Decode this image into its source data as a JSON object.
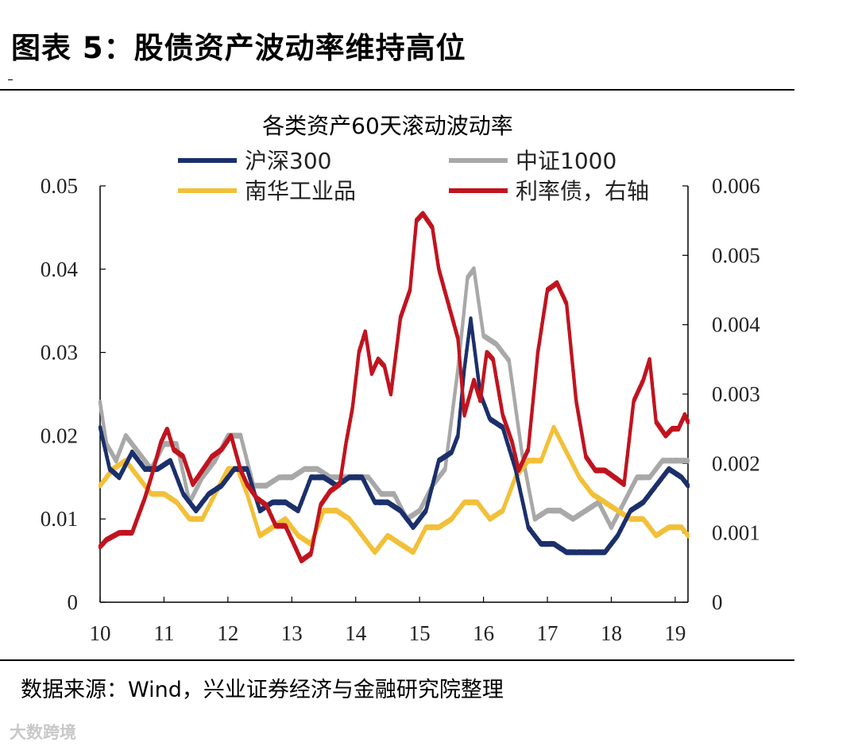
{
  "figure": {
    "title": "图表 5：股债资产波动率维持高位",
    "source": "数据来源：Wind，兴业证券经济与金融研究院整理",
    "watermark": "大数跨境"
  },
  "chart_data": {
    "type": "line",
    "title": "各类资产60天滚动波动率",
    "x_tick_labels": [
      "10",
      "11",
      "12",
      "13",
      "14",
      "15",
      "16",
      "17",
      "18",
      "19"
    ],
    "xlim": [
      10,
      19.2
    ],
    "left_axis": {
      "ylim": [
        0,
        0.05
      ],
      "tick_labels": [
        "0",
        "0.01",
        "0.02",
        "0.03",
        "0.04",
        "0.05"
      ]
    },
    "right_axis": {
      "ylim": [
        0,
        0.006
      ],
      "tick_labels": [
        "0",
        "0.001",
        "0.002",
        "0.003",
        "0.004",
        "0.005",
        "0.006"
      ]
    },
    "legend": [
      {
        "name": "沪深300",
        "color": "#1b2f6b"
      },
      {
        "name": "中证1000",
        "color": "#a8a8a8"
      },
      {
        "name": "南华工业品",
        "color": "#f2c038"
      },
      {
        "name": "利率债，右轴",
        "color": "#c0141f"
      }
    ],
    "series": [
      {
        "name": "中证1000",
        "axis": "left",
        "color": "#a8a8a8",
        "x": [
          10.0,
          10.1,
          10.25,
          10.4,
          10.6,
          10.8,
          11.0,
          11.2,
          11.4,
          11.6,
          11.8,
          12.0,
          12.2,
          12.4,
          12.6,
          12.8,
          13.0,
          13.2,
          13.4,
          13.6,
          13.8,
          14.0,
          14.2,
          14.4,
          14.6,
          14.8,
          15.0,
          15.2,
          15.4,
          15.6,
          15.75,
          15.85,
          16.0,
          16.2,
          16.4,
          16.6,
          16.8,
          17.0,
          17.2,
          17.4,
          17.6,
          17.8,
          18.0,
          18.2,
          18.4,
          18.6,
          18.8,
          19.0,
          19.2
        ],
        "values": [
          0.024,
          0.019,
          0.017,
          0.02,
          0.018,
          0.016,
          0.019,
          0.019,
          0.012,
          0.015,
          0.017,
          0.02,
          0.02,
          0.014,
          0.014,
          0.015,
          0.015,
          0.016,
          0.016,
          0.015,
          0.015,
          0.015,
          0.015,
          0.013,
          0.013,
          0.01,
          0.011,
          0.014,
          0.016,
          0.028,
          0.039,
          0.04,
          0.032,
          0.031,
          0.029,
          0.018,
          0.01,
          0.011,
          0.011,
          0.01,
          0.011,
          0.012,
          0.009,
          0.012,
          0.015,
          0.015,
          0.017,
          0.017,
          0.017
        ]
      },
      {
        "name": "南华工业品",
        "axis": "left",
        "color": "#f2c038",
        "x": [
          10.0,
          10.2,
          10.4,
          10.6,
          10.8,
          11.0,
          11.2,
          11.4,
          11.6,
          11.8,
          12.0,
          12.15,
          12.3,
          12.5,
          12.7,
          12.9,
          13.1,
          13.3,
          13.5,
          13.7,
          13.9,
          14.1,
          14.3,
          14.5,
          14.7,
          14.9,
          15.1,
          15.3,
          15.5,
          15.7,
          15.9,
          16.1,
          16.3,
          16.5,
          16.7,
          16.9,
          17.1,
          17.3,
          17.5,
          17.7,
          17.9,
          18.1,
          18.3,
          18.5,
          18.7,
          18.9,
          19.1,
          19.2
        ],
        "values": [
          0.014,
          0.016,
          0.017,
          0.015,
          0.013,
          0.013,
          0.012,
          0.01,
          0.01,
          0.013,
          0.016,
          0.016,
          0.013,
          0.008,
          0.009,
          0.01,
          0.008,
          0.007,
          0.011,
          0.011,
          0.01,
          0.008,
          0.006,
          0.008,
          0.007,
          0.006,
          0.009,
          0.009,
          0.01,
          0.012,
          0.012,
          0.01,
          0.011,
          0.015,
          0.017,
          0.017,
          0.021,
          0.018,
          0.015,
          0.013,
          0.012,
          0.011,
          0.01,
          0.01,
          0.008,
          0.009,
          0.009,
          0.008
        ]
      },
      {
        "name": "沪深300",
        "axis": "left",
        "color": "#1b2f6b",
        "x": [
          10.0,
          10.15,
          10.3,
          10.5,
          10.7,
          10.9,
          11.1,
          11.3,
          11.5,
          11.7,
          11.9,
          12.1,
          12.3,
          12.5,
          12.7,
          12.9,
          13.1,
          13.3,
          13.5,
          13.7,
          13.9,
          14.1,
          14.3,
          14.5,
          14.7,
          14.9,
          15.1,
          15.3,
          15.5,
          15.6,
          15.7,
          15.8,
          15.95,
          16.1,
          16.3,
          16.5,
          16.7,
          16.9,
          17.1,
          17.3,
          17.5,
          17.7,
          17.9,
          18.1,
          18.3,
          18.5,
          18.7,
          18.9,
          19.1,
          19.2
        ],
        "values": [
          0.021,
          0.016,
          0.015,
          0.018,
          0.016,
          0.016,
          0.017,
          0.013,
          0.011,
          0.013,
          0.014,
          0.016,
          0.016,
          0.011,
          0.012,
          0.012,
          0.011,
          0.015,
          0.015,
          0.014,
          0.015,
          0.015,
          0.012,
          0.012,
          0.011,
          0.009,
          0.011,
          0.017,
          0.018,
          0.02,
          0.028,
          0.034,
          0.025,
          0.022,
          0.021,
          0.016,
          0.009,
          0.007,
          0.007,
          0.006,
          0.006,
          0.006,
          0.006,
          0.008,
          0.011,
          0.012,
          0.014,
          0.016,
          0.015,
          0.014
        ]
      },
      {
        "name": "利率债，右轴",
        "axis": "right",
        "color": "#c0141f",
        "x": [
          10.0,
          10.1,
          10.3,
          10.5,
          10.7,
          10.8,
          10.95,
          11.05,
          11.15,
          11.3,
          11.45,
          11.6,
          11.75,
          11.9,
          12.05,
          12.2,
          12.3,
          12.45,
          12.6,
          12.75,
          12.9,
          13.05,
          13.15,
          13.3,
          13.45,
          13.6,
          13.75,
          13.85,
          13.95,
          14.05,
          14.15,
          14.25,
          14.35,
          14.45,
          14.55,
          14.7,
          14.85,
          14.95,
          15.05,
          15.2,
          15.3,
          15.45,
          15.6,
          15.7,
          15.85,
          15.95,
          16.05,
          16.15,
          16.3,
          16.45,
          16.55,
          16.7,
          16.85,
          17.0,
          17.15,
          17.3,
          17.45,
          17.6,
          17.75,
          17.9,
          18.05,
          18.2,
          18.35,
          18.5,
          18.6,
          18.7,
          18.85,
          18.95,
          19.05,
          19.15,
          19.2
        ],
        "values": [
          0.0008,
          0.0009,
          0.001,
          0.001,
          0.0015,
          0.0018,
          0.0023,
          0.0025,
          0.0022,
          0.0021,
          0.0017,
          0.0019,
          0.0021,
          0.0022,
          0.0024,
          0.0019,
          0.0017,
          0.0015,
          0.0014,
          0.0011,
          0.0011,
          0.0008,
          0.0006,
          0.0007,
          0.0014,
          0.0016,
          0.0017,
          0.0023,
          0.0028,
          0.0036,
          0.0039,
          0.0033,
          0.0035,
          0.0034,
          0.003,
          0.0041,
          0.0045,
          0.0055,
          0.0056,
          0.0054,
          0.0048,
          0.0043,
          0.0038,
          0.0027,
          0.0032,
          0.0029,
          0.0036,
          0.0035,
          0.0027,
          0.0023,
          0.0019,
          0.0022,
          0.0036,
          0.0045,
          0.0046,
          0.0043,
          0.0029,
          0.0021,
          0.0019,
          0.0019,
          0.0018,
          0.0017,
          0.0029,
          0.0032,
          0.0035,
          0.0026,
          0.0024,
          0.0025,
          0.0025,
          0.0027,
          0.0026
        ]
      }
    ]
  }
}
